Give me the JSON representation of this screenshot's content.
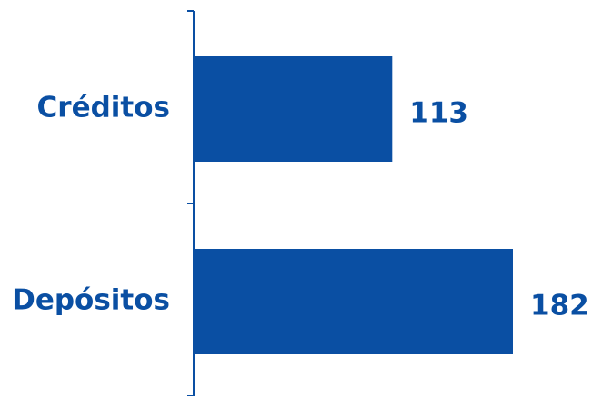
{
  "colors": {
    "bar": "#0a4fa3",
    "text": "#0a4fa3",
    "axis": "#0a4fa3",
    "background": "#ffffff"
  },
  "chart_data": {
    "type": "bar",
    "orientation": "horizontal",
    "categories": [
      "Créditos",
      "Depósitos"
    ],
    "values": [
      113,
      182
    ],
    "title": "",
    "xlabel": "",
    "ylabel": "",
    "xlim": [
      0,
      182
    ],
    "grid": false,
    "legend": "none",
    "data_labels": true
  }
}
